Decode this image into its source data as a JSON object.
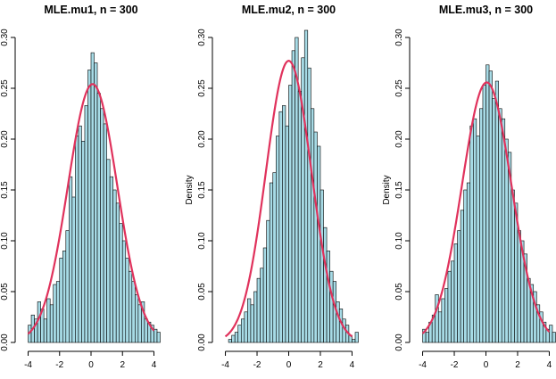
{
  "colors": {
    "bar_fill": "#a7dbe6",
    "bar_edge": "#000000",
    "curve": "#e0325c"
  },
  "chart_data": [
    {
      "type": "bar",
      "title": "MLE.mu1, n = 300",
      "xlabel": "",
      "ylabel": "",
      "xlim": [
        -4.2,
        4.2
      ],
      "ylim": [
        0,
        0.3
      ],
      "x_ticks": [
        -4,
        -2,
        0,
        2,
        4
      ],
      "y_ticks": [
        "0.00",
        "0.05",
        "0.10",
        "0.15",
        "0.20",
        "0.25",
        "0.30"
      ],
      "bins": {
        "start": -4.0,
        "width": 0.2
      },
      "densities": [
        0.017,
        0.027,
        0.023,
        0.04,
        0.033,
        0.023,
        0.043,
        0.037,
        0.057,
        0.06,
        0.083,
        0.09,
        0.11,
        0.163,
        0.143,
        0.203,
        0.213,
        0.198,
        0.233,
        0.268,
        0.285,
        0.275,
        0.245,
        0.23,
        0.215,
        0.18,
        0.163,
        0.15,
        0.137,
        0.117,
        0.1,
        0.083,
        0.07,
        0.06,
        0.047,
        0.037,
        0.04,
        0.023,
        0.02,
        0.017,
        0.013,
        0.01
      ],
      "curve": {
        "label": "",
        "mean": 0.1,
        "sd": 1.57
      }
    },
    {
      "type": "bar",
      "title": "MLE.mu2, n = 300",
      "xlabel": "",
      "ylabel": "Density",
      "xlim": [
        -4.2,
        4.2
      ],
      "ylim": [
        0,
        0.3
      ],
      "x_ticks": [
        -4,
        -2,
        0,
        2,
        4
      ],
      "y_ticks": [
        "0.00",
        "0.05",
        "0.10",
        "0.15",
        "0.20",
        "0.25",
        "0.30"
      ],
      "bins": {
        "start": -4.0,
        "width": 0.2
      },
      "densities": [
        0.0,
        0.003,
        0.007,
        0.01,
        0.017,
        0.023,
        0.03,
        0.043,
        0.037,
        0.05,
        0.063,
        0.073,
        0.093,
        0.12,
        0.157,
        0.167,
        0.203,
        0.227,
        0.233,
        0.213,
        0.253,
        0.287,
        0.3,
        0.247,
        0.28,
        0.313,
        0.27,
        0.23,
        0.207,
        0.193,
        0.15,
        0.113,
        0.09,
        0.07,
        0.06,
        0.04,
        0.033,
        0.023,
        0.017,
        0.007,
        0.003,
        0.01
      ],
      "curve": {
        "label": "",
        "mean": 0.0,
        "sd": 1.44
      }
    },
    {
      "type": "bar",
      "title": "MLE.mu3, n = 300",
      "xlabel": "",
      "ylabel": "Density",
      "xlim": [
        -4.2,
        4.2
      ],
      "ylim": [
        0,
        0.3
      ],
      "x_ticks": [
        -4,
        -2,
        0,
        2,
        4
      ],
      "y_ticks": [
        "0.00",
        "0.05",
        "0.10",
        "0.15",
        "0.20",
        "0.25",
        "0.30"
      ],
      "bins": {
        "start": -4.0,
        "width": 0.2
      },
      "densities": [
        0.013,
        0.01,
        0.02,
        0.027,
        0.047,
        0.03,
        0.043,
        0.053,
        0.07,
        0.08,
        0.097,
        0.11,
        0.13,
        0.15,
        0.157,
        0.213,
        0.22,
        0.203,
        0.23,
        0.253,
        0.273,
        0.267,
        0.24,
        0.257,
        0.23,
        0.22,
        0.2,
        0.187,
        0.15,
        0.137,
        0.11,
        0.1,
        0.087,
        0.063,
        0.057,
        0.05,
        0.037,
        0.03,
        0.02,
        0.013,
        0.017,
        0.01
      ],
      "curve": {
        "label": "",
        "mean": 0.05,
        "sd": 1.56
      }
    }
  ]
}
